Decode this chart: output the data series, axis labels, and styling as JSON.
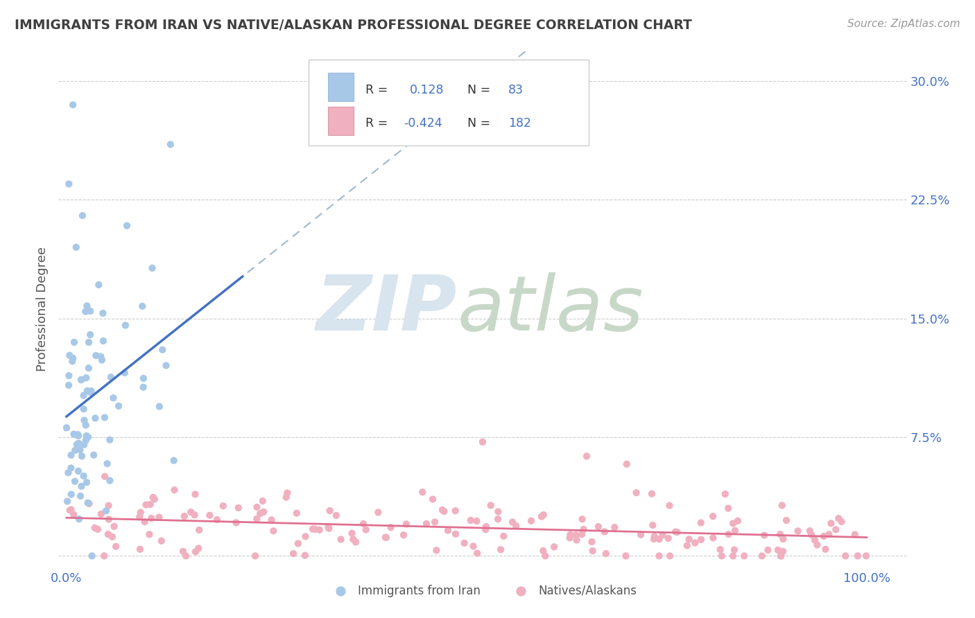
{
  "title": "IMMIGRANTS FROM IRAN VS NATIVE/ALASKAN PROFESSIONAL DEGREE CORRELATION CHART",
  "source": "Source: ZipAtlas.com",
  "ylabel": "Professional Degree",
  "ytick_vals": [
    0.0,
    0.075,
    0.15,
    0.225,
    0.3
  ],
  "ytick_labels": [
    "",
    "7.5%",
    "15.0%",
    "22.5%",
    "30.0%"
  ],
  "xtick_vals": [
    0.0,
    1.0
  ],
  "xtick_labels": [
    "0.0%",
    "100.0%"
  ],
  "legend_blue_R": "0.128",
  "legend_blue_N": "83",
  "legend_pink_R": "-0.424",
  "legend_pink_N": "182",
  "blue_color": "#A8C8E8",
  "blue_line_color": "#4472C4",
  "pink_color": "#F0B0C0",
  "pink_line_color": "#E07090",
  "dashed_line_color": "#A0B8D0",
  "background_color": "#FFFFFF",
  "grid_color": "#CCCCCC",
  "tick_label_color": "#4472C4",
  "title_color": "#404040",
  "source_color": "#999999",
  "ylabel_color": "#555555",
  "watermark_zip_color": "#D8E4EE",
  "watermark_atlas_color": "#C8D8C8",
  "n_blue": 83,
  "n_pink": 182,
  "blue_R": 0.128,
  "pink_R": -0.424,
  "xlim": [
    -0.01,
    1.05
  ],
  "ylim": [
    -0.008,
    0.32
  ]
}
